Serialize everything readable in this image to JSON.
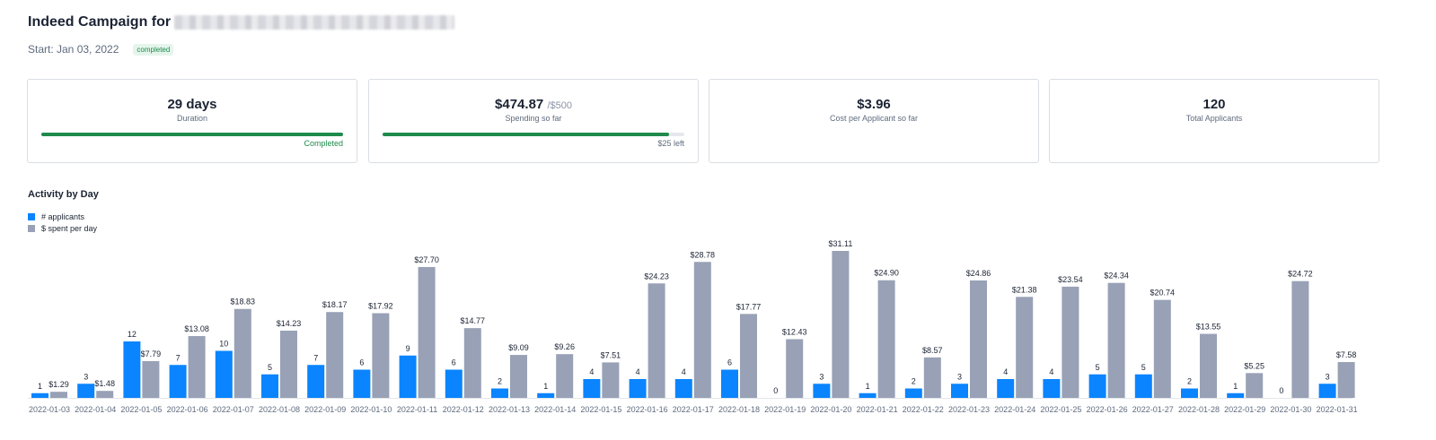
{
  "header": {
    "title": "Indeed Campaign for",
    "start": "Start: Jan 03, 2022",
    "status_badge": "completed"
  },
  "cards": [
    {
      "value": "29 days",
      "label": "Duration",
      "progress": 1.0,
      "note": "Completed"
    },
    {
      "value": "$474.87",
      "value_sub": "/$500",
      "label": "Spending so far",
      "progress": 0.95,
      "note": "$25 left"
    },
    {
      "value": "$3.96",
      "label": "Cost per Applicant so far"
    },
    {
      "value": "120",
      "label": "Total Applicants"
    }
  ],
  "colors": {
    "applicants": "#0a84ff",
    "spent": "#98a1b6",
    "progress": "#1f8a4c",
    "badge_text": "#1f8a4c",
    "badge_bg": "#e5f5ec"
  },
  "chart_data": {
    "type": "bar",
    "title": "Activity by Day",
    "legend": "top-left",
    "categories": [
      "2022-01-03",
      "2022-01-04",
      "2022-01-05",
      "2022-01-06",
      "2022-01-07",
      "2022-01-08",
      "2022-01-09",
      "2022-01-10",
      "2022-01-11",
      "2022-01-12",
      "2022-01-13",
      "2022-01-14",
      "2022-01-15",
      "2022-01-16",
      "2022-01-17",
      "2022-01-18",
      "2022-01-19",
      "2022-01-20",
      "2022-01-21",
      "2022-01-22",
      "2022-01-23",
      "2022-01-24",
      "2022-01-25",
      "2022-01-26",
      "2022-01-27",
      "2022-01-28",
      "2022-01-29",
      "2022-01-30",
      "2022-01-31"
    ],
    "series": [
      {
        "name": "# applicants",
        "values": [
          1,
          3,
          12,
          7,
          10,
          5,
          7,
          6,
          9,
          6,
          2,
          1,
          4,
          4,
          4,
          6,
          0,
          3,
          1,
          2,
          3,
          4,
          4,
          5,
          5,
          2,
          1,
          0,
          3
        ],
        "labels": [
          "1",
          "3",
          "12",
          "7",
          "10",
          "5",
          "7",
          "6",
          "9",
          "6",
          "2",
          "1",
          "4",
          "4",
          "4",
          "6",
          "0",
          "3",
          "1",
          "2",
          "3",
          "4",
          "4",
          "5",
          "5",
          "2",
          "1",
          "0",
          "3"
        ]
      },
      {
        "name": "$ spent per day",
        "values": [
          1.29,
          1.48,
          7.79,
          13.08,
          18.83,
          14.23,
          18.17,
          17.92,
          27.7,
          14.77,
          9.09,
          9.26,
          7.51,
          24.23,
          28.78,
          17.77,
          12.43,
          31.11,
          24.9,
          8.57,
          24.86,
          21.38,
          23.54,
          24.34,
          20.74,
          13.55,
          5.25,
          24.72,
          7.58
        ],
        "labels": [
          "$1.29",
          "$1.48",
          "$7.79",
          "$13.08",
          "$18.83",
          "$14.23",
          "$18.17",
          "$17.92",
          "$27.70",
          "$14.77",
          "$9.09",
          "$9.26",
          "$7.51",
          "$24.23",
          "$28.78",
          "$17.77",
          "$12.43",
          "$31.11",
          "$24.90",
          "$8.57",
          "$24.86",
          "$21.38",
          "$23.54",
          "$24.34",
          "$20.74",
          "$13.55",
          "$5.25",
          "$24.72",
          "$7.58"
        ]
      }
    ]
  }
}
